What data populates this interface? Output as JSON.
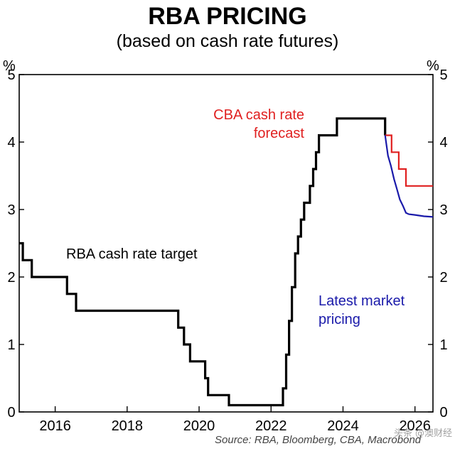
{
  "title": "RBA PRICING",
  "subtitle": "(based on cash rate futures)",
  "source": "Source: RBA, Bloomberg, CBA, Macrobond",
  "watermark": "头条 @澳财经",
  "chart_data": {
    "type": "line",
    "title": "RBA PRICING",
    "subtitle": "(based on cash rate futures)",
    "ylabel_left": "%",
    "ylabel_right": "%",
    "xlim": [
      2015.0,
      2026.5
    ],
    "ylim": [
      0,
      5
    ],
    "x_ticks": [
      2016,
      2018,
      2020,
      2022,
      2024,
      2026
    ],
    "x_tick_labels": [
      "2016",
      "2018",
      "2020",
      "2022",
      "2024",
      "2026"
    ],
    "y_ticks": [
      0,
      1,
      2,
      3,
      4,
      5
    ],
    "y_tick_labels": [
      "0",
      "1",
      "2",
      "3",
      "4",
      "5"
    ],
    "grid": false,
    "annotations": [
      {
        "text": "RBA cash rate target",
        "color": "#000000"
      },
      {
        "text": [
          "CBA cash rate",
          "forecast"
        ],
        "color": "#e02020"
      },
      {
        "text": [
          "Latest market",
          "pricing"
        ],
        "color": "#1a1aaa"
      }
    ],
    "series": [
      {
        "name": "RBA cash rate target",
        "color": "#000000",
        "step": true,
        "x": [
          2015.0,
          2015.1,
          2015.35,
          2016.33,
          2016.58,
          2019.42,
          2019.58,
          2019.75,
          2020.17,
          2020.25,
          2020.83,
          2022.33,
          2022.42,
          2022.5,
          2022.58,
          2022.67,
          2022.75,
          2022.83,
          2022.92,
          2023.08,
          2023.17,
          2023.25,
          2023.33,
          2023.42,
          2023.83,
          2025.17,
          2025.17
        ],
        "y": [
          2.5,
          2.25,
          2.0,
          1.75,
          1.5,
          1.25,
          1.0,
          0.75,
          0.5,
          0.25,
          0.1,
          0.35,
          0.85,
          1.35,
          1.85,
          2.35,
          2.6,
          2.85,
          3.1,
          3.35,
          3.6,
          3.85,
          4.1,
          4.1,
          4.35,
          4.1,
          4.1
        ]
      },
      {
        "name": "CBA cash rate forecast",
        "color": "#e02020",
        "step": true,
        "x": [
          2025.17,
          2025.35,
          2025.55,
          2025.75,
          2026.5
        ],
        "y": [
          4.1,
          3.85,
          3.6,
          3.35,
          3.35
        ]
      },
      {
        "name": "Latest market pricing",
        "color": "#1a1aaa",
        "step": false,
        "x": [
          2025.17,
          2025.25,
          2025.33,
          2025.42,
          2025.5,
          2025.58,
          2025.67,
          2025.75,
          2025.83,
          2026.0,
          2026.25,
          2026.5
        ],
        "y": [
          4.1,
          3.8,
          3.65,
          3.45,
          3.3,
          3.15,
          3.05,
          2.95,
          2.93,
          2.92,
          2.9,
          2.89
        ]
      }
    ]
  }
}
